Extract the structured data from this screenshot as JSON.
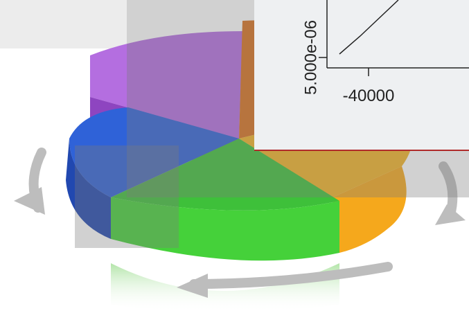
{
  "inset_chart": {
    "y_tick_label": "5.000e-06",
    "x_tick_label": "-40000"
  }
}
